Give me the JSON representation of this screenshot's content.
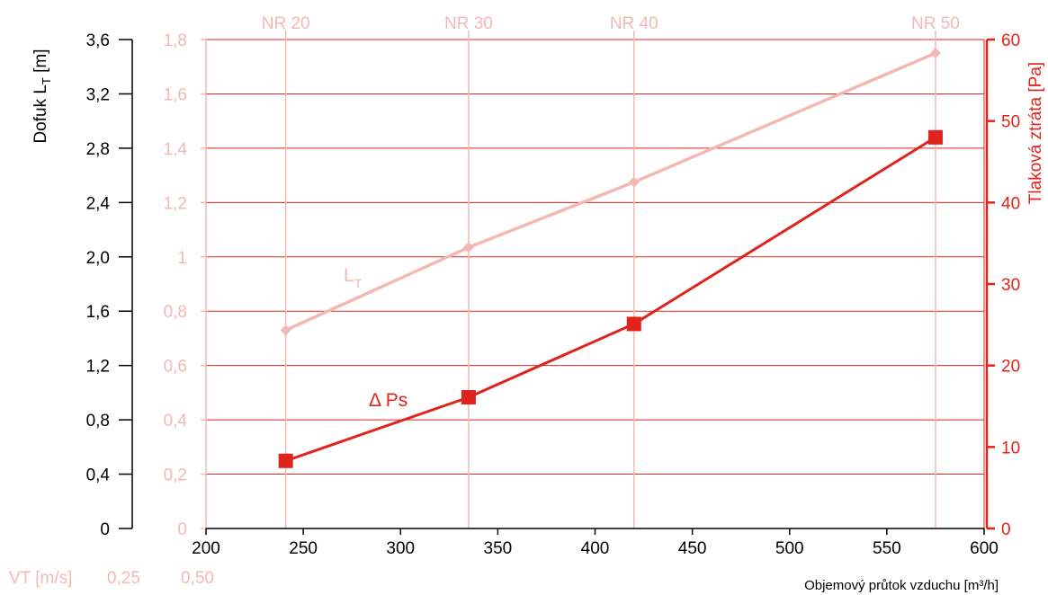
{
  "chart_data": {
    "type": "line",
    "x_axis": {
      "label": "Objemový průtok vzduchu [m³/h]",
      "range": [
        200,
        600
      ],
      "ticks": [
        "200",
        "250",
        "300",
        "350",
        "400",
        "450",
        "500",
        "550",
        "600"
      ]
    },
    "y_left_outer": {
      "label_main": "Dofuk L",
      "label_sub": "T",
      "label_unit": " [m]",
      "range": [
        0,
        3.6
      ],
      "ticks": [
        "0",
        "0,4",
        "0,8",
        "1,2",
        "1,6",
        "2,0",
        "2,4",
        "2,8",
        "3,2",
        "3,6"
      ]
    },
    "y_left_inner": {
      "range": [
        0,
        1.8
      ],
      "ticks": [
        "0",
        "0,2",
        "0,4",
        "0,6",
        "0,8",
        "1",
        "1,2",
        "1,4",
        "1,6",
        "1,8"
      ]
    },
    "y_right": {
      "label": "Tlaková ztráta [Pa]",
      "range": [
        0,
        60
      ],
      "ticks": [
        "0",
        "10",
        "20",
        "30",
        "40",
        "50",
        "60"
      ]
    },
    "nr_lines": [
      {
        "label": "NR 20",
        "x": 241
      },
      {
        "label": "NR 30",
        "x": 335
      },
      {
        "label": "NR 40",
        "x": 420
      },
      {
        "label": "NR 50",
        "x": 575
      }
    ],
    "series": [
      {
        "name": "L",
        "name_sub": "T",
        "axis": "y_left_outer",
        "color": "#f4b8b4",
        "marker": "diamond",
        "x": [
          241,
          335,
          420,
          575
        ],
        "y": [
          1.46,
          2.07,
          2.55,
          3.5
        ]
      },
      {
        "name": "Δ Ps",
        "axis": "y_right",
        "color": "#e0231c",
        "marker": "square",
        "x": [
          241,
          335,
          420,
          575
        ],
        "y": [
          8.3,
          16.1,
          25.1,
          48
        ]
      }
    ],
    "grid": true,
    "footer": {
      "vt_label": "VT [m/s]",
      "vt_values": [
        "0,25",
        "0,50"
      ]
    },
    "colors": {
      "axis_black": "#000000",
      "pink": "#f4b8b4",
      "red": "#e0231c"
    }
  }
}
